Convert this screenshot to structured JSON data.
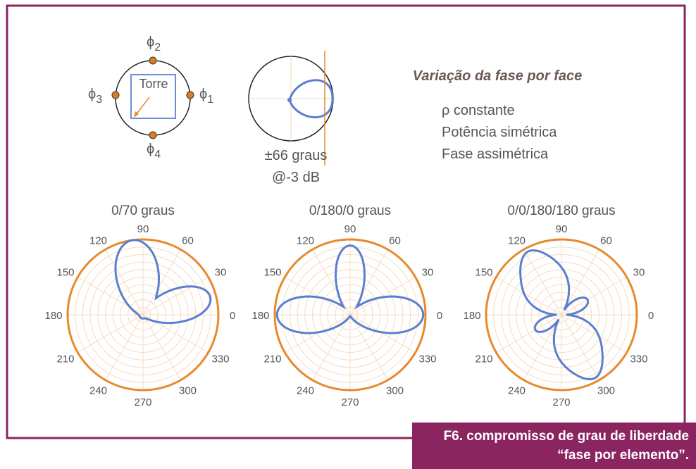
{
  "figure": {
    "tower": {
      "label": "Torre",
      "phases": [
        {
          "symbol": "ϕ",
          "sub": "1"
        },
        {
          "symbol": "ϕ",
          "sub": "2"
        },
        {
          "symbol": "ϕ",
          "sub": "3"
        },
        {
          "symbol": "ϕ",
          "sub": "4"
        }
      ]
    },
    "beam": {
      "width": "±66 graus",
      "level": "@-3 dB"
    },
    "legend": {
      "title": "Variação da fase por face",
      "items": [
        "ρ constante",
        "Potência simétrica",
        "Fase assimétrica"
      ]
    },
    "polar_plots": [
      {
        "title": "0/70 graus"
      },
      {
        "title": "0/180/0 graus"
      },
      {
        "title": "0/0/180/180 graus"
      }
    ],
    "angle_labels": [
      "0",
      "30",
      "60",
      "90",
      "120",
      "150",
      "180",
      "210",
      "240",
      "270",
      "300",
      "330"
    ],
    "caption": [
      "F6. compromisso de grau de liberdade",
      "“fase por elemento”."
    ]
  }
}
